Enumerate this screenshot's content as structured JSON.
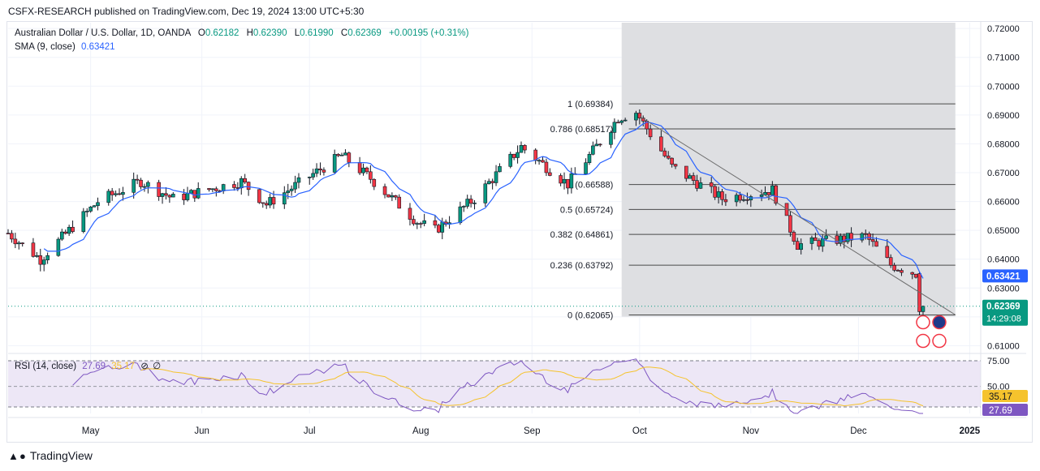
{
  "header": {
    "publisher": "CSFX-RESEARCH published on TradingView.com, Dec 19, 2024 13:00 UTC+5:30"
  },
  "instrument": {
    "name": "Australian Dollar / U.S. Dollar, 1D, OANDA",
    "o_label": "O",
    "open": "0.62182",
    "h_label": "H",
    "high": "0.62390",
    "l_label": "L",
    "low": "0.61990",
    "c_label": "C",
    "close": "0.62369",
    "change": "+0.00195 (+0.31%)"
  },
  "sma": {
    "label": "SMA (9, close)",
    "value": "0.63421",
    "color": "#2962ff"
  },
  "rsi": {
    "label": "RSI (14, close)",
    "value": "27.69",
    "ma_value": "35.17",
    "axis_labels": [
      "75.00",
      "50.00"
    ],
    "ma_color": "#f5c32d",
    "line_color": "#7e57c2"
  },
  "price_axis": {
    "ticks": [
      "0.72000",
      "0.71000",
      "0.70000",
      "0.69000",
      "0.68000",
      "0.67000",
      "0.66000",
      "0.65000",
      "0.64000",
      "0.63000",
      "0.61000"
    ]
  },
  "price_badges": {
    "sma": "0.63421",
    "last": "0.62369",
    "countdown": "14:29:08"
  },
  "time_axis": {
    "labels": [
      "May",
      "Jun",
      "Jul",
      "Aug",
      "Sep",
      "Oct",
      "Nov",
      "Dec",
      "2025"
    ]
  },
  "fibonacci": {
    "levels": [
      {
        "label": "1 (0.69384)",
        "price": 0.69384
      },
      {
        "label": "0.786 (0.68517)",
        "price": 0.68517
      },
      {
        "label": "0.618 (0.66588)",
        "price": 0.66588,
        "display": "(0.66588)"
      },
      {
        "label": "0.5 (0.65724)",
        "price": 0.65724
      },
      {
        "label": "0.382 (0.64861)",
        "price": 0.64861
      },
      {
        "label": "0.236 (0.63792)",
        "price": 0.63792
      },
      {
        "label": "0 (0.62065)",
        "price": 0.62065
      }
    ]
  },
  "colors": {
    "up": "#089981",
    "down": "#f23645",
    "sma": "#2962ff",
    "fib_zone": "#dcdde0",
    "rsi_band": "#ede7f6"
  },
  "footer": {
    "brand": "TradingView"
  },
  "chart_data": {
    "type": "candlestick",
    "series_name": "Australian Dollar / U.S. Dollar",
    "x_range": [
      "2024-04-08",
      "2024-12-19"
    ],
    "ylim": [
      0.609,
      0.722
    ],
    "waypoints": [
      {
        "date": "2024-04-08",
        "close": 0.649
      },
      {
        "date": "2024-04-17",
        "close": 0.64
      },
      {
        "date": "2024-05-03",
        "close": 0.66
      },
      {
        "date": "2024-05-15",
        "close": 0.667
      },
      {
        "date": "2024-05-24",
        "close": 0.661
      },
      {
        "date": "2024-06-12",
        "close": 0.667
      },
      {
        "date": "2024-06-19",
        "close": 0.659
      },
      {
        "date": "2024-07-10",
        "close": 0.676
      },
      {
        "date": "2024-07-18",
        "close": 0.668
      },
      {
        "date": "2024-07-31",
        "close": 0.653
      },
      {
        "date": "2024-08-05",
        "close": 0.65
      },
      {
        "date": "2024-08-16",
        "close": 0.661
      },
      {
        "date": "2024-08-29",
        "close": 0.679
      },
      {
        "date": "2024-09-05",
        "close": 0.672
      },
      {
        "date": "2024-09-11",
        "close": 0.666
      },
      {
        "date": "2024-09-25",
        "close": 0.689
      },
      {
        "date": "2024-09-30",
        "close": 0.691
      },
      {
        "date": "2024-10-10",
        "close": 0.672
      },
      {
        "date": "2024-10-24",
        "close": 0.661
      },
      {
        "date": "2024-11-07",
        "close": 0.664
      },
      {
        "date": "2024-11-14",
        "close": 0.645
      },
      {
        "date": "2024-12-03",
        "close": 0.648
      },
      {
        "date": "2024-12-10",
        "close": 0.638
      },
      {
        "date": "2024-12-17",
        "close": 0.635
      },
      {
        "date": "2024-12-18",
        "close": 0.6218
      },
      {
        "date": "2024-12-19",
        "close": 0.62369
      }
    ]
  }
}
